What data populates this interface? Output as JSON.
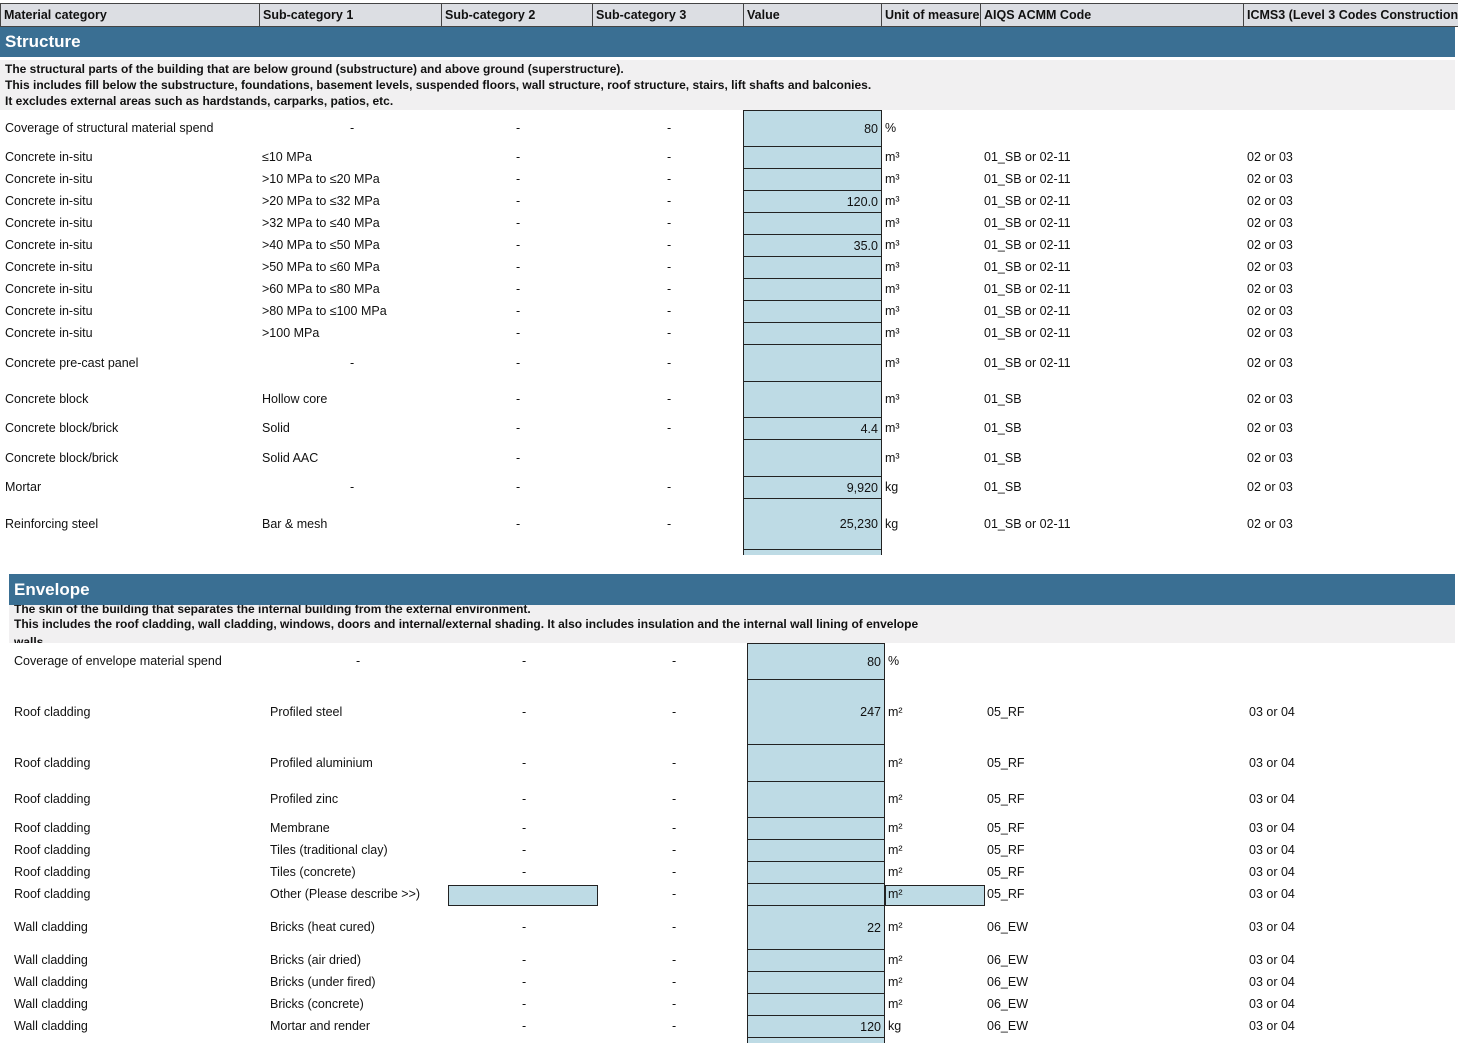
{
  "header": [
    "Material category",
    "Sub-category 1",
    "Sub-category 2",
    "Sub-category 3",
    "Value",
    "Unit of measure",
    "AIQS ACMM Code",
    "ICMS3 (Level 3 Codes Construction"
  ],
  "structure": {
    "title": "Structure",
    "description": [
      "The structural parts of the building that are below ground (substructure) and above ground (superstructure).",
      "This includes fill below the substructure, foundations, basement levels, suspended floors, wall structure, roof structure, stairs, lift shafts and balconies.",
      "It excludes external areas such as hardstands, carparks, patios, etc."
    ],
    "rows": [
      {
        "cat": "Coverage of structural material spend",
        "sub1": "-",
        "sub2": "-",
        "sub3": "-",
        "value": "80",
        "unit": "%",
        "aiqs": "",
        "icms": ""
      },
      {
        "cat": "Concrete in-situ",
        "sub1": "≤10 MPa",
        "sub2": "-",
        "sub3": "-",
        "value": "",
        "unit": "m³",
        "aiqs": "01_SB or 02-11",
        "icms": "02 or 03"
      },
      {
        "cat": "Concrete in-situ",
        "sub1": ">10 MPa to ≤20 MPa",
        "sub2": "-",
        "sub3": "-",
        "value": "",
        "unit": "m³",
        "aiqs": "01_SB or 02-11",
        "icms": "02 or 03"
      },
      {
        "cat": "Concrete in-situ",
        "sub1": ">20 MPa to ≤32 MPa",
        "sub2": "-",
        "sub3": "-",
        "value": "120.0",
        "unit": "m³",
        "aiqs": "01_SB or 02-11",
        "icms": "02 or 03"
      },
      {
        "cat": "Concrete in-situ",
        "sub1": ">32 MPa to ≤40 MPa",
        "sub2": "-",
        "sub3": "-",
        "value": "",
        "unit": "m³",
        "aiqs": "01_SB or 02-11",
        "icms": "02 or 03"
      },
      {
        "cat": "Concrete in-situ",
        "sub1": ">40 MPa to ≤50 MPa",
        "sub2": "-",
        "sub3": "-",
        "value": "35.0",
        "unit": "m³",
        "aiqs": "01_SB or 02-11",
        "icms": "02 or 03"
      },
      {
        "cat": "Concrete in-situ",
        "sub1": ">50 MPa to ≤60 MPa",
        "sub2": "-",
        "sub3": "-",
        "value": "",
        "unit": "m³",
        "aiqs": "01_SB or 02-11",
        "icms": "02 or 03"
      },
      {
        "cat": "Concrete in-situ",
        "sub1": ">60 MPa to ≤80 MPa",
        "sub2": "-",
        "sub3": "-",
        "value": "",
        "unit": "m³",
        "aiqs": "01_SB or 02-11",
        "icms": "02 or 03"
      },
      {
        "cat": "Concrete in-situ",
        "sub1": ">80 MPa to ≤100 MPa",
        "sub2": "-",
        "sub3": "-",
        "value": "",
        "unit": "m³",
        "aiqs": "01_SB or 02-11",
        "icms": "02 or 03"
      },
      {
        "cat": "Concrete in-situ",
        "sub1": ">100 MPa",
        "sub2": "-",
        "sub3": "-",
        "value": "",
        "unit": "m³",
        "aiqs": "01_SB or 02-11",
        "icms": "02 or 03"
      },
      {
        "cat": "Concrete pre-cast panel",
        "sub1": "-",
        "sub2": "-",
        "sub3": "-",
        "value": "",
        "unit": "m³",
        "aiqs": "01_SB or 02-11",
        "icms": "02 or 03"
      },
      {
        "cat": "Concrete block",
        "sub1": "Hollow core",
        "sub2": "-",
        "sub3": "-",
        "value": "",
        "unit": "m³",
        "aiqs": "01_SB",
        "icms": "02 or 03"
      },
      {
        "cat": "Concrete block/brick",
        "sub1": "Solid",
        "sub2": "-",
        "sub3": "-",
        "value": "4.4",
        "unit": "m³",
        "aiqs": "01_SB",
        "icms": "02 or 03"
      },
      {
        "cat": "Concrete block/brick",
        "sub1": "Solid AAC",
        "sub2": "-",
        "sub3": "",
        "value": "",
        "unit": "m³",
        "aiqs": "01_SB",
        "icms": "02 or 03"
      },
      {
        "cat": "Mortar",
        "sub1": "-",
        "sub2": "-",
        "sub3": "-",
        "value": "9,920",
        "unit": "kg",
        "aiqs": "01_SB",
        "icms": "02 or 03"
      },
      {
        "cat": "Reinforcing steel",
        "sub1": "Bar & mesh",
        "sub2": "-",
        "sub3": "-",
        "value": "25,230",
        "unit": "kg",
        "aiqs": "01_SB or 02-11",
        "icms": "02 or 03"
      }
    ]
  },
  "envelope": {
    "title": "Envelope",
    "description": [
      "The skin of the building that separates the internal building from the external environment.",
      "This includes the roof cladding, wall cladding, windows, doors and internal/external shading. It also includes insulation and the internal wall lining of envelope",
      "walls"
    ],
    "rows": [
      {
        "cat": "Coverage of envelope material spend",
        "sub1": "-",
        "sub2": "-",
        "sub3": "-",
        "value": "80",
        "unit": "%",
        "aiqs": "",
        "icms": ""
      },
      {
        "cat": "Roof cladding",
        "sub1": "Profiled steel",
        "sub2": "-",
        "sub3": "-",
        "value": "247",
        "unit": "m²",
        "aiqs": "05_RF",
        "icms": "03 or 04"
      },
      {
        "cat": "Roof cladding",
        "sub1": "Profiled aluminium",
        "sub2": "-",
        "sub3": "-",
        "value": "",
        "unit": "m²",
        "aiqs": "05_RF",
        "icms": "03 or 04"
      },
      {
        "cat": "Roof cladding",
        "sub1": "Profiled zinc",
        "sub2": "-",
        "sub3": "-",
        "value": "",
        "unit": "m²",
        "aiqs": "05_RF",
        "icms": "03 or 04"
      },
      {
        "cat": "Roof cladding",
        "sub1": "Membrane",
        "sub2": "-",
        "sub3": "-",
        "value": "",
        "unit": "m²",
        "aiqs": "05_RF",
        "icms": "03 or 04"
      },
      {
        "cat": "Roof cladding",
        "sub1": "Tiles (traditional clay)",
        "sub2": "-",
        "sub3": "-",
        "value": "",
        "unit": "m²",
        "aiqs": "05_RF",
        "icms": "03 or 04"
      },
      {
        "cat": "Roof cladding",
        "sub1": "Tiles (concrete)",
        "sub2": "-",
        "sub3": "-",
        "value": "",
        "unit": "m²",
        "aiqs": "05_RF",
        "icms": "03 or 04"
      },
      {
        "cat": "Roof cladding",
        "sub1": "Other (Please describe >>)",
        "sub2": "",
        "sub3": "-",
        "value": "",
        "unit": "m²",
        "aiqs": "05_RF",
        "icms": "03 or 04",
        "input": true
      },
      {
        "cat": "Wall cladding",
        "sub1": "Bricks (heat cured)",
        "sub2": "-",
        "sub3": "-",
        "value": "22",
        "unit": "m²",
        "aiqs": "06_EW",
        "icms": "03 or 04"
      },
      {
        "cat": "Wall cladding",
        "sub1": "Bricks (air dried)",
        "sub2": "-",
        "sub3": "-",
        "value": "",
        "unit": "m²",
        "aiqs": "06_EW",
        "icms": "03 or 04"
      },
      {
        "cat": "Wall cladding",
        "sub1": "Bricks (under fired)",
        "sub2": "-",
        "sub3": "-",
        "value": "",
        "unit": "m²",
        "aiqs": "06_EW",
        "icms": "03 or 04"
      },
      {
        "cat": "Wall cladding",
        "sub1": "Bricks (concrete)",
        "sub2": "-",
        "sub3": "-",
        "value": "",
        "unit": "m²",
        "aiqs": "06_EW",
        "icms": "03 or 04"
      },
      {
        "cat": "Wall cladding",
        "sub1": "Mortar and render",
        "sub2": "-",
        "sub3": "-",
        "value": "120",
        "unit": "kg",
        "aiqs": "06_EW",
        "icms": "03 or 04"
      }
    ]
  },
  "colors": {
    "section_band": "#3a6f93",
    "input_fill": "#bedbe5",
    "header_fill": "#dcdee3",
    "description_fill": "#f1f0f1"
  }
}
